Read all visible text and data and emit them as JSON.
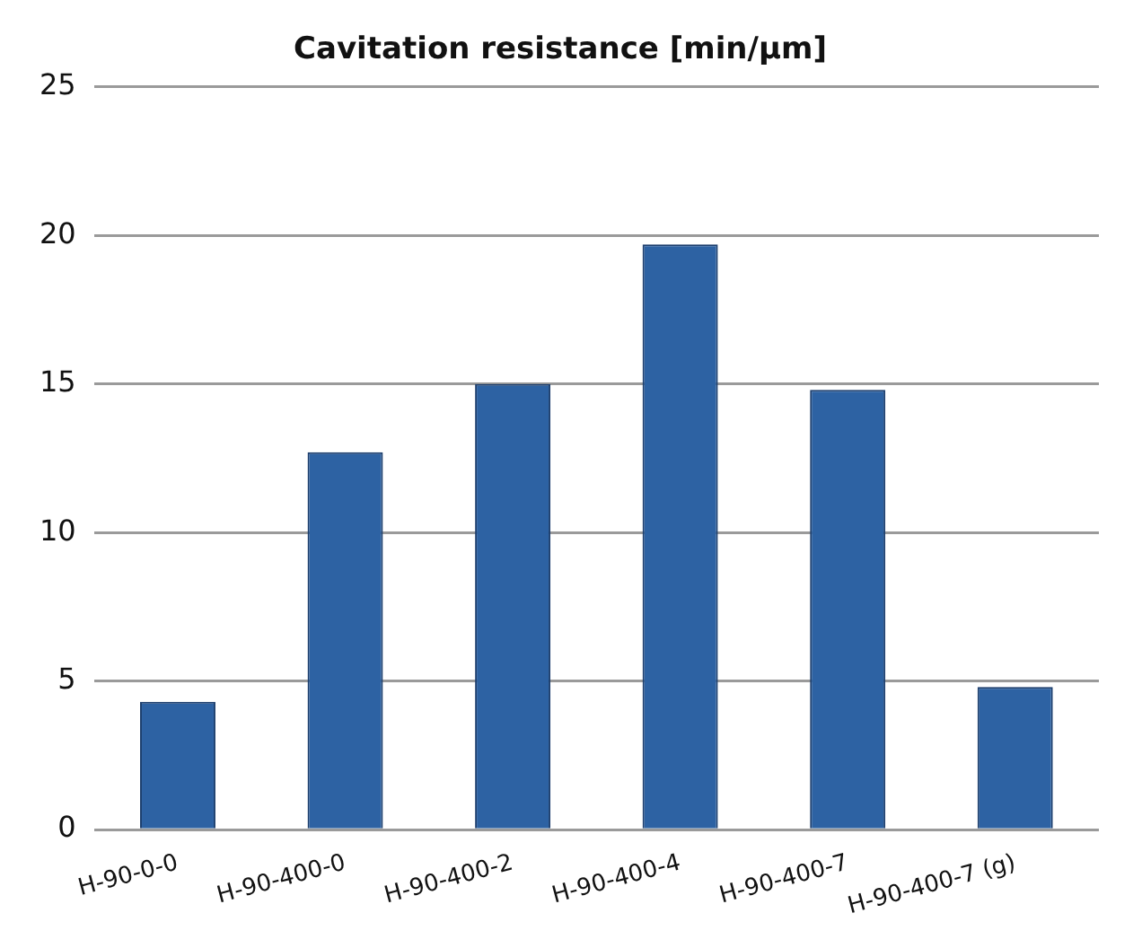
{
  "chart_data": {
    "type": "bar",
    "title": "Cavitation resistance [min/µm]",
    "categories": [
      "H-90-0-0",
      "H-90-400-0",
      "H-90-400-2",
      "H-90-400-4",
      "H-90-400-7",
      "H-90-400-7 (g)"
    ],
    "values": [
      4.3,
      12.7,
      15.0,
      19.7,
      14.8,
      4.8
    ],
    "color": "#2d62a3",
    "ylim": [
      0,
      25
    ],
    "yticks": [
      0,
      5,
      10,
      15,
      20,
      25
    ],
    "grid": "y"
  }
}
